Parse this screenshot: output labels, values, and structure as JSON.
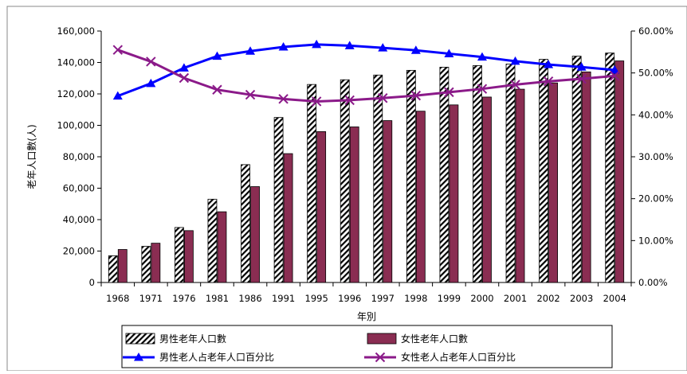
{
  "chart_data": {
    "type": "bar",
    "title": "",
    "xlabel": "年別",
    "ylabel": "老年人口數(人)",
    "y2label": "",
    "categories": [
      "1968",
      "1971",
      "1976",
      "1981",
      "1986",
      "1991",
      "1995",
      "1996",
      "1997",
      "1998",
      "1999",
      "2000",
      "2001",
      "2002",
      "2003",
      "2004"
    ],
    "ylim": [
      0,
      160000
    ],
    "y_ticks": [
      "0",
      "20,000",
      "40,000",
      "60,000",
      "80,000",
      "100,000",
      "120,000",
      "140,000",
      "160,000"
    ],
    "y2lim": [
      0,
      60
    ],
    "y2_ticks": [
      "0.00%",
      "10.00%",
      "20.00%",
      "30.00%",
      "40.00%",
      "50.00%",
      "60.00%"
    ],
    "grid": false,
    "legend_position": "bottom",
    "series": [
      {
        "name": "男性老年人口數",
        "kind": "bar",
        "axis": "left",
        "pattern": "hatched",
        "color": "#000000",
        "values": [
          17000,
          23000,
          35000,
          53000,
          75000,
          105000,
          126000,
          129000,
          132000,
          135000,
          137000,
          138000,
          139000,
          142000,
          144000,
          146000
        ]
      },
      {
        "name": "女性老年人口數",
        "kind": "bar",
        "axis": "left",
        "color": "#8a2d52",
        "values": [
          21000,
          25000,
          33000,
          45000,
          61000,
          82000,
          96000,
          99000,
          103000,
          109000,
          113000,
          118000,
          123000,
          127000,
          134000,
          141000
        ]
      },
      {
        "name": "男性老人占老年人口百分比",
        "kind": "line",
        "axis": "right",
        "marker": "triangle",
        "color": "#0000ff",
        "values": [
          44.5,
          47.5,
          51.2,
          54.0,
          55.2,
          56.2,
          56.8,
          56.5,
          56.0,
          55.4,
          54.6,
          53.8,
          52.8,
          52.0,
          51.4,
          50.7
        ]
      },
      {
        "name": "女性老人占老年人口百分比",
        "kind": "line",
        "axis": "right",
        "marker": "x",
        "color": "#8b1a89",
        "values": [
          55.5,
          52.7,
          48.8,
          46.0,
          44.8,
          43.8,
          43.2,
          43.5,
          44.0,
          44.6,
          45.4,
          46.2,
          47.2,
          48.0,
          48.6,
          49.3
        ]
      }
    ]
  }
}
